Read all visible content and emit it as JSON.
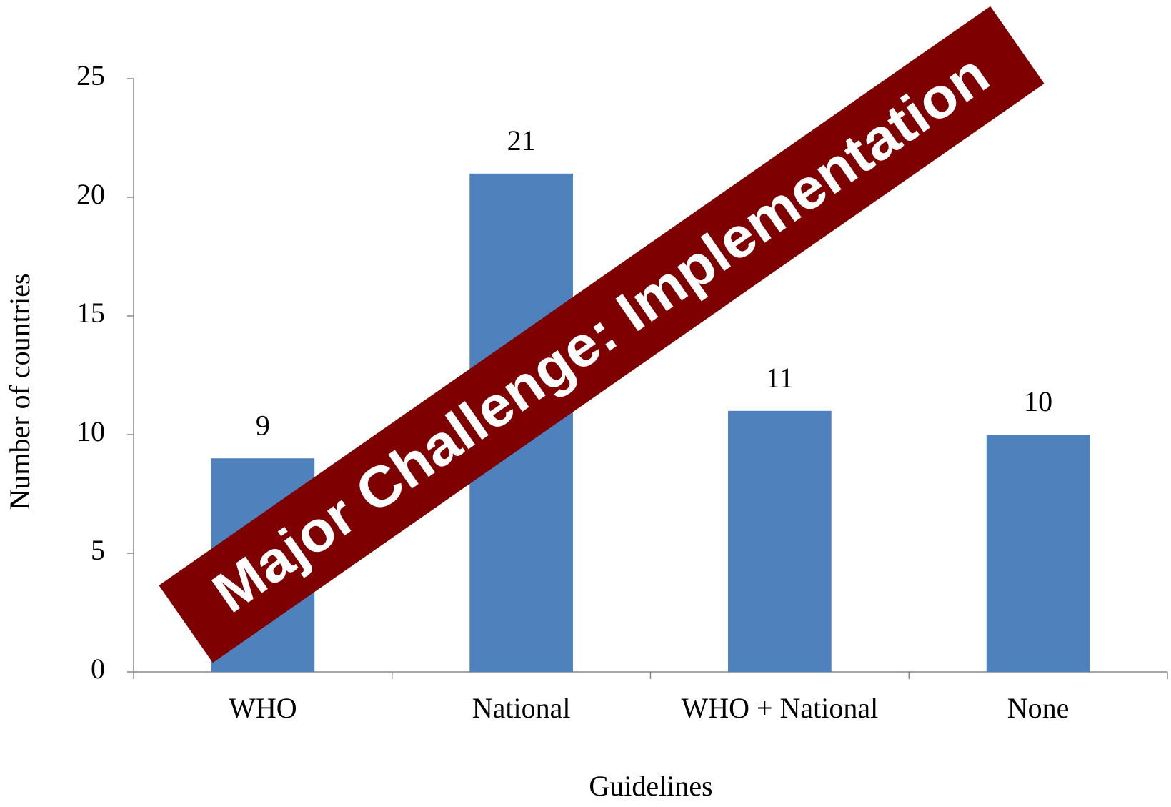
{
  "chart_data": {
    "type": "bar",
    "x_label": "Guidelines",
    "y_label": "Number of countries",
    "annotation": "Major Challenge: Implementation",
    "categories": [
      "WHO",
      "National",
      "WHO + National",
      "None"
    ],
    "values": [
      9,
      21,
      11,
      10
    ],
    "color": "#4f81bd",
    "ylim": [
      0,
      25
    ],
    "yticks": [
      0,
      5,
      10,
      15,
      20,
      25
    ],
    "grid": false,
    "annotation_color": "#7f0000"
  }
}
